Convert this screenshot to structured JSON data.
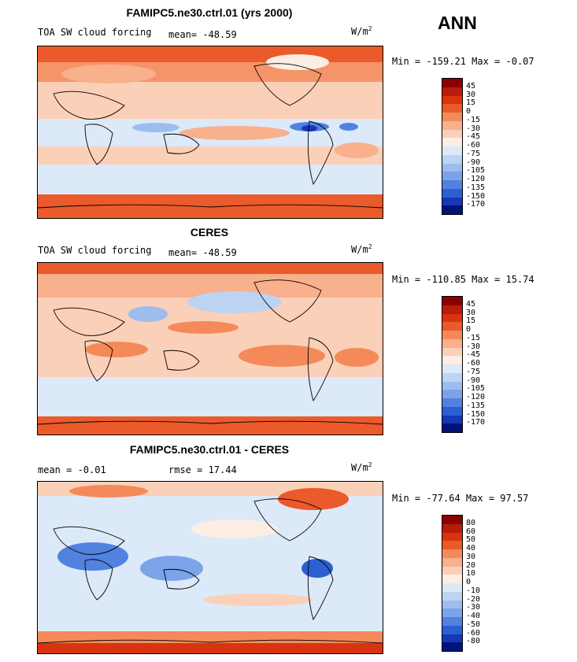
{
  "season": "ANN",
  "panels": [
    {
      "title": "FAMIPC5.ne30.ctrl.01 (yrs 2000)",
      "left_label": "TOA SW cloud forcing",
      "stat1": "mean=  -48.59",
      "stat2": "",
      "units_base": "W/m",
      "units_exp": "2",
      "minmax": "Min = -159.21  Max =  -0.07",
      "colorbar": {
        "labels": [
          "45",
          "30",
          "15",
          "0",
          "-15",
          "-30",
          "-45",
          "-60",
          "-75",
          "-90",
          "-105",
          "-120",
          "-135",
          "-150",
          "-170"
        ],
        "colors": [
          "#8b0000",
          "#b81c0a",
          "#d9340f",
          "#ea5a2a",
          "#f48a5a",
          "#f8b08d",
          "#fbd0b8",
          "#fdeee4",
          "#dce9f8",
          "#bcd3f2",
          "#9cbdee",
          "#7ca2e8",
          "#5182df",
          "#2b5fd2",
          "#1537b8",
          "#001478"
        ]
      }
    },
    {
      "title": "CERES",
      "left_label": "TOA SW cloud forcing",
      "stat1": "mean=  -48.59",
      "stat2": "",
      "units_base": "W/m",
      "units_exp": "2",
      "minmax": "Min = -110.85  Max =  15.74",
      "colorbar": {
        "labels": [
          "45",
          "30",
          "15",
          "0",
          "-15",
          "-30",
          "-45",
          "-60",
          "-75",
          "-90",
          "-105",
          "-120",
          "-135",
          "-150",
          "-170"
        ],
        "colors": [
          "#8b0000",
          "#b81c0a",
          "#d9340f",
          "#ea5a2a",
          "#f48a5a",
          "#f8b08d",
          "#fbd0b8",
          "#fdeee4",
          "#dce9f8",
          "#bcd3f2",
          "#9cbdee",
          "#7ca2e8",
          "#5182df",
          "#2b5fd2",
          "#1537b8",
          "#001478"
        ]
      }
    },
    {
      "title": "FAMIPC5.ne30.ctrl.01 - CERES",
      "left_label": "mean =  -0.01",
      "stat1": "",
      "stat2": "rmse =  17.44",
      "units_base": "W/m",
      "units_exp": "2",
      "minmax": "Min = -77.64  Max =  97.57",
      "colorbar": {
        "labels": [
          "80",
          "60",
          "50",
          "40",
          "30",
          "20",
          "10",
          "0",
          "-10",
          "-20",
          "-30",
          "-40",
          "-50",
          "-60",
          "-80"
        ],
        "colors": [
          "#8b0000",
          "#b81c0a",
          "#d9340f",
          "#ea5a2a",
          "#f48a5a",
          "#f8b08d",
          "#fbd0b8",
          "#fdeee4",
          "#dce9f8",
          "#bcd3f2",
          "#9cbdee",
          "#7ca2e8",
          "#5182df",
          "#2b5fd2",
          "#1537b8",
          "#001478"
        ]
      }
    }
  ]
}
